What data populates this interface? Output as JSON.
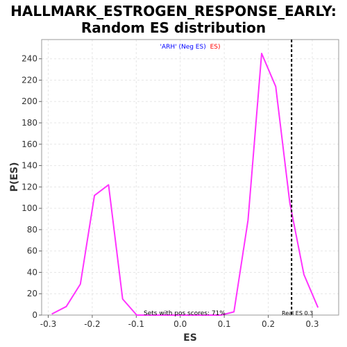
{
  "chart_data": {
    "type": "line",
    "title": "HALLMARK_ESTROGEN_RESPONSE_EARLY:",
    "subtitle": "Random ES distribution",
    "xlabel": "ES",
    "ylabel": "P(ES)",
    "xlim": [
      -0.315,
      0.36
    ],
    "ylim": [
      0,
      258
    ],
    "xticks": [
      -0.3,
      -0.2,
      -0.1,
      0.0,
      0.1,
      0.2,
      0.3
    ],
    "xtick_labels": [
      "-0.3",
      "-0.2",
      "-0.1",
      "0.0",
      "0.1",
      "0.2",
      "0.3"
    ],
    "yticks": [
      0,
      20,
      40,
      60,
      80,
      100,
      120,
      140,
      160,
      180,
      200,
      220,
      240
    ],
    "grid": true,
    "legend": {
      "placement": "top-center",
      "parts": [
        {
          "text": "'ARH' (Neg ES)",
          "color": "#0000ff"
        },
        {
          "text": "ES)",
          "color": "#ff0000"
        }
      ]
    },
    "series": [
      {
        "color": "#ff33ff",
        "x": [
          -0.292,
          -0.259,
          -0.227,
          -0.195,
          -0.163,
          -0.131,
          -0.099,
          -0.067,
          -0.035,
          -0.003,
          0.029,
          0.061,
          0.093,
          0.122,
          0.154,
          0.185,
          0.217,
          0.249,
          0.281,
          0.313
        ],
        "y": [
          1,
          8,
          29,
          112,
          122,
          15,
          0,
          0,
          0,
          0,
          0,
          0,
          0,
          3,
          89,
          245,
          214,
          105,
          38,
          7
        ]
      }
    ],
    "reference_line": {
      "x": 0.253,
      "label": "Real ES 0.3",
      "style": "dashed",
      "color": "#000000"
    },
    "annotation": "Sets with pos scores: 71%"
  }
}
